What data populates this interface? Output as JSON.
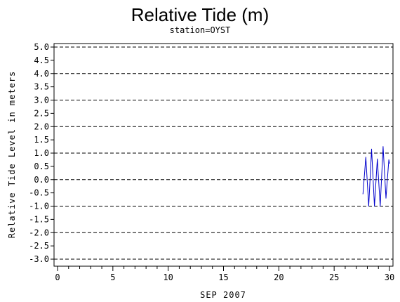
{
  "chart_data": {
    "type": "line",
    "title": "Relative Tide (m)",
    "subtitle": "station=OYST",
    "xlabel": "SEP 2007",
    "ylabel": "Relative Tide Level in meters",
    "xlim": [
      0,
      30
    ],
    "ylim": [
      -3.0,
      5.0
    ],
    "x_ticks": [
      "0",
      "5",
      "10",
      "15",
      "20",
      "25",
      "30"
    ],
    "y_ticks": [
      "-3.0",
      "-2.5",
      "-2.0",
      "-1.5",
      "-1.0",
      "-0.5",
      "0.0",
      "0.5",
      "1.0",
      "1.5",
      "2.0",
      "2.5",
      "3.0",
      "3.5",
      "4.0",
      "4.5",
      "5.0"
    ],
    "gridlines_y": [
      -3.0,
      -2.0,
      -1.0,
      0.0,
      1.0,
      2.0,
      3.0,
      4.0,
      5.0
    ],
    "grid": "dashed horizontal at whole meters",
    "series": [
      {
        "color": "#0000cc",
        "x": [
          27.6,
          27.86,
          28.12,
          28.38,
          28.64,
          28.9,
          29.16,
          29.42,
          29.68,
          29.94,
          30.0
        ],
        "y": [
          -0.55,
          0.85,
          -1.0,
          1.15,
          -1.0,
          0.78,
          -1.0,
          1.25,
          -0.7,
          0.75,
          0.6
        ]
      }
    ]
  }
}
